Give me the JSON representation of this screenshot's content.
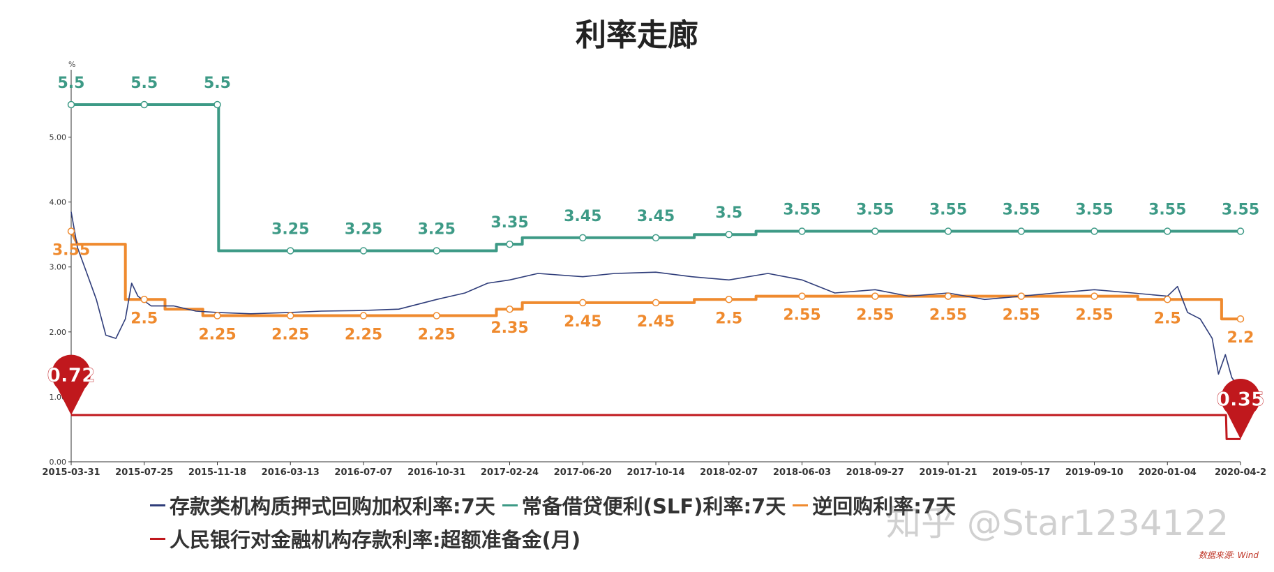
{
  "title": "利率走廊",
  "unit_label": "%",
  "source": "数据来源: Wind",
  "watermark": "知乎 @Star1234122",
  "legend": [
    {
      "label": "存款类机构质押式回购加权利率:7天",
      "color": "#2f3d7a"
    },
    {
      "label": "常备借贷便利(SLF)利率:7天",
      "color": "#3d9a86"
    },
    {
      "label": "逆回购利率:7天",
      "color": "#ef8a2e"
    },
    {
      "label": "人民银行对金融机构存款利率:超额准备金(月)",
      "color": "#c0181d"
    }
  ],
  "chart_data": {
    "type": "line",
    "title": "利率走廊",
    "ylabel": "%",
    "ylim": [
      0,
      5.5
    ],
    "yticks": [
      "0.00",
      "1.00",
      "2.00",
      "3.00",
      "4.00",
      "5.00"
    ],
    "xlim": [
      "2015-03-31",
      "2020-04-29"
    ],
    "x_tick_labels": [
      "2015-03-31",
      "2015-07-25",
      "2015-11-18",
      "2016-03-13",
      "2016-07-07",
      "2016-10-31",
      "2017-02-24",
      "2017-06-20",
      "2017-10-14",
      "2018-02-07",
      "2018-06-03",
      "2018-09-27",
      "2019-01-21",
      "2019-05-17",
      "2019-09-10",
      "2020-01-04",
      "2020-04-2"
    ],
    "colors": {
      "repo": "#2f3d7a",
      "slf": "#3d9a86",
      "reverse": "#ef8a2e",
      "excess": "#c0181d"
    },
    "series": [
      {
        "name": "常备借贷便利(SLF)利率:7天",
        "key": "slf",
        "step": true,
        "points": [
          [
            "2015-03-31",
            5.5
          ],
          [
            "2015-11-20",
            5.5
          ],
          [
            "2015-11-20",
            3.25
          ],
          [
            "2017-02-03",
            3.25
          ],
          [
            "2017-02-03",
            3.35
          ],
          [
            "2017-03-16",
            3.35
          ],
          [
            "2017-03-16",
            3.45
          ],
          [
            "2017-12-14",
            3.45
          ],
          [
            "2017-12-14",
            3.5
          ],
          [
            "2018-03-22",
            3.5
          ],
          [
            "2018-03-22",
            3.55
          ],
          [
            "2020-04-29",
            3.55
          ]
        ],
        "labels": [
          [
            "2015-03-31",
            5.5
          ],
          [
            "2015-07-25",
            5.5
          ],
          [
            "2015-11-18",
            5.5
          ],
          [
            "2016-03-13",
            3.25
          ],
          [
            "2016-07-07",
            3.25
          ],
          [
            "2016-10-31",
            3.25
          ],
          [
            "2017-02-24",
            3.35
          ],
          [
            "2017-06-20",
            3.45
          ],
          [
            "2017-10-14",
            3.45
          ],
          [
            "2018-02-07",
            3.5
          ],
          [
            "2018-06-03",
            3.55
          ],
          [
            "2018-09-27",
            3.55
          ],
          [
            "2019-01-21",
            3.55
          ],
          [
            "2019-05-17",
            3.55
          ],
          [
            "2019-09-10",
            3.55
          ],
          [
            "2020-01-04",
            3.55
          ],
          [
            "2020-04-29",
            3.55
          ]
        ]
      },
      {
        "name": "逆回购利率:7天",
        "key": "reverse",
        "step": true,
        "points": [
          [
            "2015-03-31",
            3.55
          ],
          [
            "2015-04-10",
            3.35
          ],
          [
            "2015-06-25",
            3.35
          ],
          [
            "2015-06-25",
            2.5
          ],
          [
            "2015-08-27",
            2.5
          ],
          [
            "2015-08-27",
            2.35
          ],
          [
            "2015-10-26",
            2.35
          ],
          [
            "2015-10-26",
            2.25
          ],
          [
            "2017-02-03",
            2.25
          ],
          [
            "2017-02-03",
            2.35
          ],
          [
            "2017-03-16",
            2.35
          ],
          [
            "2017-03-16",
            2.45
          ],
          [
            "2017-12-14",
            2.45
          ],
          [
            "2017-12-14",
            2.5
          ],
          [
            "2018-03-22",
            2.5
          ],
          [
            "2018-03-22",
            2.55
          ],
          [
            "2019-11-18",
            2.55
          ],
          [
            "2019-11-18",
            2.5
          ],
          [
            "2020-03-30",
            2.5
          ],
          [
            "2020-03-30",
            2.2
          ],
          [
            "2020-04-29",
            2.2
          ]
        ],
        "labels": [
          [
            "2015-03-31",
            3.55
          ],
          [
            "2015-07-25",
            2.5
          ],
          [
            "2015-11-18",
            2.25
          ],
          [
            "2016-03-13",
            2.25
          ],
          [
            "2016-07-07",
            2.25
          ],
          [
            "2016-10-31",
            2.25
          ],
          [
            "2017-02-24",
            2.35
          ],
          [
            "2017-06-20",
            2.45
          ],
          [
            "2017-10-14",
            2.45
          ],
          [
            "2018-02-07",
            2.5
          ],
          [
            "2018-06-03",
            2.55
          ],
          [
            "2018-09-27",
            2.55
          ],
          [
            "2019-01-21",
            2.55
          ],
          [
            "2019-05-17",
            2.55
          ],
          [
            "2019-09-10",
            2.55
          ],
          [
            "2020-01-04",
            2.5
          ],
          [
            "2020-04-29",
            2.2
          ]
        ]
      },
      {
        "name": "人民银行对金融机构存款利率:超额准备金(月)",
        "key": "excess",
        "step": true,
        "points": [
          [
            "2015-03-31",
            0.72
          ],
          [
            "2020-04-06",
            0.72
          ],
          [
            "2020-04-07",
            0.35
          ],
          [
            "2020-04-29",
            0.35
          ]
        ],
        "pins": [
          [
            "2015-03-31",
            0.72,
            "0.72"
          ],
          [
            "2020-04-29",
            0.35,
            "0.35"
          ]
        ]
      },
      {
        "name": "存款类机构质押式回购加权利率:7天",
        "key": "repo",
        "step": false,
        "points": [
          [
            "2015-03-31",
            3.85
          ],
          [
            "2015-04-10",
            3.3
          ],
          [
            "2015-04-25",
            2.9
          ],
          [
            "2015-05-10",
            2.5
          ],
          [
            "2015-05-25",
            1.95
          ],
          [
            "2015-06-10",
            1.9
          ],
          [
            "2015-06-25",
            2.2
          ],
          [
            "2015-07-05",
            2.75
          ],
          [
            "2015-07-15",
            2.55
          ],
          [
            "2015-08-05",
            2.4
          ],
          [
            "2015-09-10",
            2.4
          ],
          [
            "2015-10-15",
            2.32
          ],
          [
            "2015-11-18",
            2.3
          ],
          [
            "2016-01-10",
            2.28
          ],
          [
            "2016-03-13",
            2.3
          ],
          [
            "2016-05-01",
            2.32
          ],
          [
            "2016-07-07",
            2.33
          ],
          [
            "2016-09-01",
            2.35
          ],
          [
            "2016-10-31",
            2.5
          ],
          [
            "2016-12-15",
            2.6
          ],
          [
            "2017-01-20",
            2.75
          ],
          [
            "2017-02-24",
            2.8
          ],
          [
            "2017-04-10",
            2.9
          ],
          [
            "2017-06-20",
            2.85
          ],
          [
            "2017-08-10",
            2.9
          ],
          [
            "2017-10-14",
            2.92
          ],
          [
            "2017-12-10",
            2.85
          ],
          [
            "2018-02-07",
            2.8
          ],
          [
            "2018-04-10",
            2.9
          ],
          [
            "2018-06-03",
            2.8
          ],
          [
            "2018-07-25",
            2.6
          ],
          [
            "2018-09-27",
            2.65
          ],
          [
            "2018-11-20",
            2.55
          ],
          [
            "2019-01-21",
            2.6
          ],
          [
            "2019-03-20",
            2.5
          ],
          [
            "2019-05-17",
            2.55
          ],
          [
            "2019-07-10",
            2.6
          ],
          [
            "2019-09-10",
            2.65
          ],
          [
            "2019-11-10",
            2.6
          ],
          [
            "2020-01-04",
            2.55
          ],
          [
            "2020-01-20",
            2.7
          ],
          [
            "2020-02-05",
            2.3
          ],
          [
            "2020-02-25",
            2.2
          ],
          [
            "2020-03-15",
            1.9
          ],
          [
            "2020-03-25",
            1.35
          ],
          [
            "2020-04-05",
            1.65
          ],
          [
            "2020-04-15",
            1.3
          ],
          [
            "2020-04-29",
            1.1
          ]
        ]
      }
    ]
  }
}
